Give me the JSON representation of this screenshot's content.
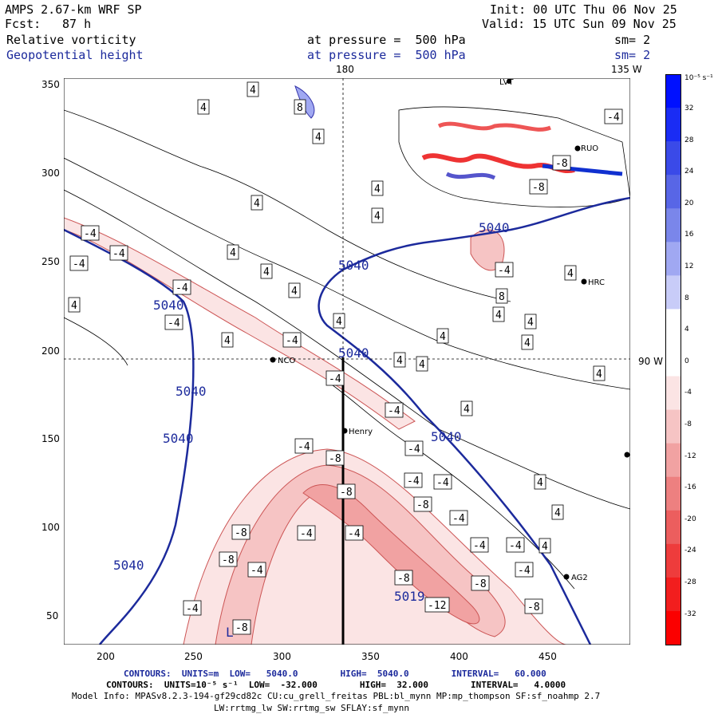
{
  "header": {
    "model_title": "AMPS 2.67-km WRF SP",
    "forecast_label": "Fcst:",
    "forecast_value": "87 h",
    "init": "Init: 00 UTC Thu 06 Nov 25",
    "valid": "Valid: 15 UTC Sun 09 Nov 25",
    "field1_name": "Relative vorticity",
    "field1_level": "at pressure =  500 hPa",
    "field1_sm": "sm= 2",
    "field2_name": "Geopotential height",
    "field2_level": "at pressure =  500 hPa",
    "field2_sm": "sm= 2"
  },
  "map_labels": {
    "lon_180": "180",
    "lon_135": "135 W",
    "lat_90": "90 W",
    "stations": [
      "NCO",
      "Henry",
      "HRC",
      "AG2",
      "RUO",
      "LVT"
    ]
  },
  "axes": {
    "x_ticks": [
      "200",
      "250",
      "300",
      "350",
      "400",
      "450"
    ],
    "y_ticks": [
      "350",
      "300",
      "250",
      "200",
      "150",
      "100",
      "50"
    ]
  },
  "colorbar": {
    "unit": "10⁻⁵ s⁻¹",
    "levels": [
      "32",
      "28",
      "24",
      "20",
      "16",
      "12",
      "8",
      "4",
      "0",
      "-4",
      "-8",
      "-12",
      "-16",
      "-20",
      "-24",
      "-28",
      "-32"
    ],
    "colors": [
      "#0010ff",
      "#1a2cf4",
      "#3a4ae8",
      "#5866e6",
      "#7a86ea",
      "#a0a8f2",
      "#c8ccf8",
      "#ffffff",
      "#ffffff",
      "#fbe4e4",
      "#f6c4c4",
      "#f1a2a2",
      "#ed8080",
      "#ec5e5e",
      "#ee3c3c",
      "#f21e1e",
      "#fb0000"
    ]
  },
  "contour_labels": {
    "height": [
      "5040",
      "5040",
      "5040",
      "5040",
      "5040",
      "5040",
      "5040",
      "5040",
      "5019"
    ],
    "vorticity": [
      "4",
      "-4",
      "-8",
      "-12",
      "8"
    ],
    "low_marker": "L"
  },
  "footer": {
    "line1": "CONTOURS:  UNITS=m  LOW=   5040.0        HIGH=  5040.0        INTERVAL=   60.000",
    "line2": "CONTOURS:  UNITS=10⁻⁵ s⁻¹  LOW=  -32.000        HIGH=  32.000        INTERVAL=   4.0000",
    "line3": "Model Info: MPASv8.2.3-194-gf29cd82c CU:cu_grell_freitas PBL:bl_mynn MP:mp_thompson SF:sf_noahmp 2.7",
    "line4": "LW:rrtmg_lw SW:rrtmg_sw SFLAY:sf_mynn"
  }
}
